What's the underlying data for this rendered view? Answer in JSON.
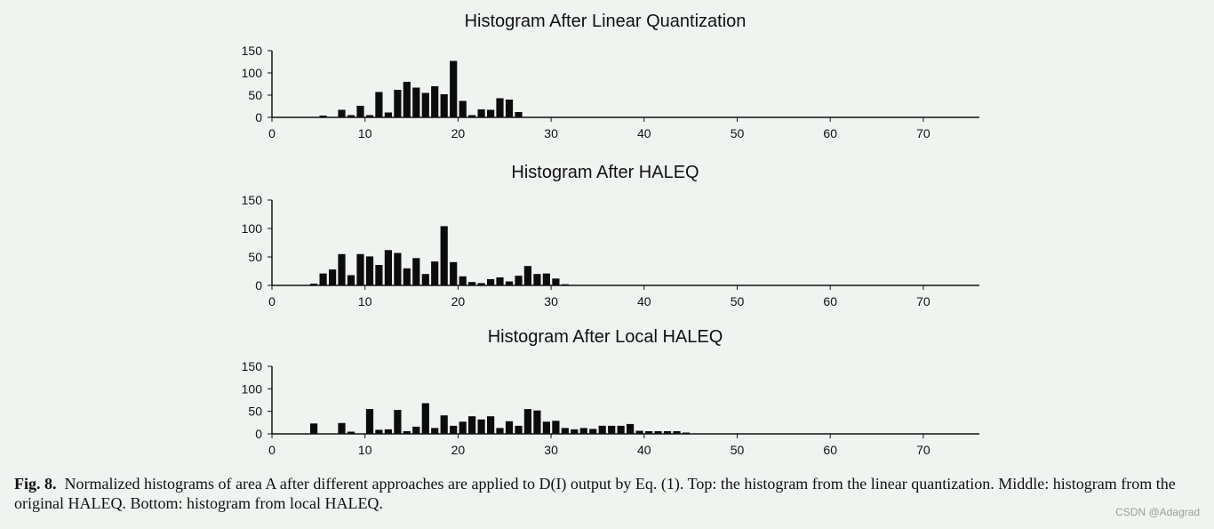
{
  "chart_data": [
    {
      "type": "bar",
      "title": "Histogram After Linear Quantization",
      "xlabel": "",
      "ylabel": "",
      "xlim": [
        0,
        76
      ],
      "ylim": [
        0,
        150
      ],
      "xticks": [
        0,
        10,
        20,
        30,
        40,
        50,
        60,
        70
      ],
      "yticks": [
        0,
        50,
        100,
        150
      ],
      "grid": false,
      "x": [
        5.5,
        7.5,
        8.5,
        9.5,
        10.5,
        11.5,
        12.5,
        13.5,
        14.5,
        15.5,
        16.5,
        17.5,
        18.5,
        19.5,
        20.5,
        21.5,
        22.5,
        23.5,
        24.5,
        25.5,
        26.5
      ],
      "values": [
        4,
        17,
        5,
        26,
        5,
        57,
        11,
        62,
        80,
        67,
        55,
        70,
        52,
        127,
        37,
        5,
        18,
        17,
        43,
        40,
        12
      ]
    },
    {
      "type": "bar",
      "title": "Histogram After HALEQ",
      "xlabel": "",
      "ylabel": "",
      "xlim": [
        0,
        76
      ],
      "ylim": [
        0,
        150
      ],
      "xticks": [
        0,
        10,
        20,
        30,
        40,
        50,
        60,
        70
      ],
      "yticks": [
        0,
        50,
        100,
        150
      ],
      "grid": false,
      "x": [
        4.5,
        5.5,
        6.5,
        7.5,
        8.5,
        9.5,
        10.5,
        11.5,
        12.5,
        13.5,
        14.5,
        15.5,
        16.5,
        17.5,
        18.5,
        19.5,
        20.5,
        21.5,
        22.5,
        23.5,
        24.5,
        25.5,
        26.5,
        27.5,
        28.5,
        29.5,
        30.5,
        31.5
      ],
      "values": [
        3,
        21,
        28,
        55,
        18,
        55,
        51,
        36,
        62,
        57,
        30,
        48,
        20,
        42,
        104,
        41,
        16,
        6,
        4,
        11,
        14,
        7,
        17,
        34,
        20,
        21,
        12,
        2
      ]
    },
    {
      "type": "bar",
      "title": "Histogram After Local HALEQ",
      "xlabel": "",
      "ylabel": "",
      "xlim": [
        0,
        76
      ],
      "ylim": [
        0,
        150
      ],
      "xticks": [
        0,
        10,
        20,
        30,
        40,
        50,
        60,
        70
      ],
      "yticks": [
        0,
        50,
        100,
        150
      ],
      "grid": false,
      "x": [
        4.5,
        7.5,
        8.5,
        10.5,
        11.5,
        12.5,
        13.5,
        14.5,
        15.5,
        16.5,
        17.5,
        18.5,
        19.5,
        20.5,
        21.5,
        22.5,
        23.5,
        24.5,
        25.5,
        26.5,
        27.5,
        28.5,
        29.5,
        30.5,
        31.5,
        32.5,
        33.5,
        34.5,
        35.5,
        36.5,
        37.5,
        38.5,
        39.5,
        40.5,
        41.5,
        42.5,
        43.5,
        44.5
      ],
      "values": [
        23,
        24,
        5,
        55,
        9,
        10,
        53,
        6,
        16,
        68,
        13,
        41,
        18,
        27,
        39,
        32,
        39,
        13,
        28,
        18,
        55,
        52,
        27,
        29,
        13,
        10,
        13,
        11,
        18,
        18,
        18,
        22,
        7,
        6,
        6,
        6,
        6,
        3
      ]
    }
  ],
  "caption": {
    "label": "Fig. 8.",
    "text": "Normalized histograms of area A after different approaches are applied to D(I) output by Eq. (1). Top: the histogram from the linear quantization. Middle: histogram from the original HALEQ. Bottom: histogram from local HALEQ."
  },
  "watermark": "CSDN @Adagrad"
}
